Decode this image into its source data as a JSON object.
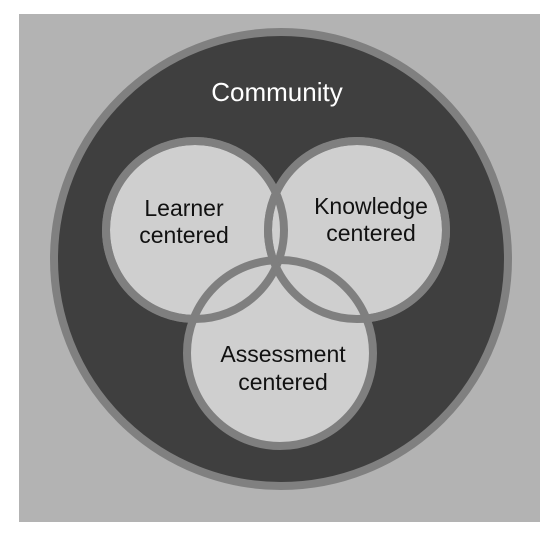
{
  "diagram": {
    "outer_label": "Community",
    "circles": {
      "learner": {
        "line1": "Learner",
        "line2": "centered"
      },
      "knowledge": {
        "line1": "Knowledge",
        "line2": "centered"
      },
      "assessment": {
        "line1": "Assessment",
        "line2": "centered"
      }
    }
  },
  "colors": {
    "background": "#b3b3b3",
    "community_fill": "#3f3f3f",
    "community_ring": "#808080",
    "inner_fill": "#cfcfcf",
    "inner_stroke": "#7f7f7f",
    "title_text": "#ffffff",
    "label_text": "#111111"
  }
}
